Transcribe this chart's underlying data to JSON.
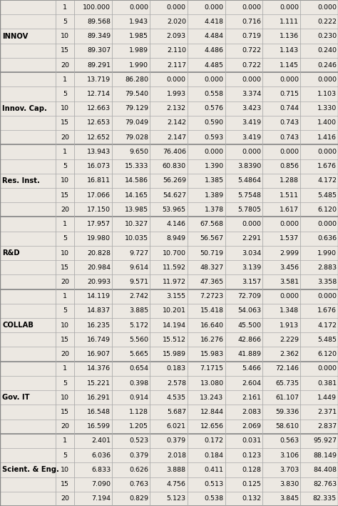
{
  "row_groups": [
    {
      "label": "INNOV",
      "periods": [
        1,
        5,
        10,
        15,
        20
      ],
      "values": [
        [
          "100.000",
          "0.000",
          "0.000",
          "0.000",
          "0.000",
          "0.000",
          "0.000"
        ],
        [
          "89.568",
          "1.943",
          "2.020",
          "4.418",
          "0.716",
          "1.111",
          "0.222"
        ],
        [
          "89.349",
          "1.985",
          "2.093",
          "4.484",
          "0.719",
          "1.136",
          "0.230"
        ],
        [
          "89.307",
          "1.989",
          "2.110",
          "4.486",
          "0.722",
          "1.143",
          "0.240"
        ],
        [
          "89.291",
          "1.990",
          "2.117",
          "4.485",
          "0.722",
          "1.145",
          "0.246"
        ]
      ]
    },
    {
      "label": "Innov. Cap.",
      "periods": [
        1,
        5,
        10,
        15,
        20
      ],
      "values": [
        [
          "13.719",
          "86.280",
          "0.000",
          "0.000",
          "0.000",
          "0.000",
          "0.000"
        ],
        [
          "12.714",
          "79.540",
          "1.993",
          "0.558",
          "3.374",
          "0.715",
          "1.103"
        ],
        [
          "12.663",
          "79.129",
          "2.132",
          "0.576",
          "3.423",
          "0.744",
          "1.330"
        ],
        [
          "12.653",
          "79.049",
          "2.142",
          "0.590",
          "3.419",
          "0.743",
          "1.400"
        ],
        [
          "12.652",
          "79.028",
          "2.147",
          "0.593",
          "3.419",
          "0.743",
          "1.416"
        ]
      ]
    },
    {
      "label": "Res. Inst.",
      "periods": [
        1,
        5,
        10,
        15,
        20
      ],
      "values": [
        [
          "13.943",
          "9.650",
          "76.406",
          "0.000",
          "0.000",
          "0.000",
          "0.000"
        ],
        [
          "16.073",
          "15.333",
          "60.830",
          "1.390",
          "3.8390",
          "0.856",
          "1.676"
        ],
        [
          "16.811",
          "14.586",
          "56.269",
          "1.385",
          "5.4864",
          "1.288",
          "4.172"
        ],
        [
          "17.066",
          "14.165",
          "54.627",
          "1.389",
          "5.7548",
          "1.511",
          "5.485"
        ],
        [
          "17.150",
          "13.985",
          "53.965",
          "1.378",
          "5.7805",
          "1.617",
          "6.120"
        ]
      ]
    },
    {
      "label": "R&D",
      "periods": [
        1,
        5,
        10,
        15,
        20
      ],
      "values": [
        [
          "17.957",
          "10.327",
          "4.146",
          "67.568",
          "0.000",
          "0.000",
          "0.000"
        ],
        [
          "19.980",
          "10.035",
          "8.949",
          "56.567",
          "2.291",
          "1.537",
          "0.636"
        ],
        [
          "20.828",
          "9.727",
          "10.700",
          "50.719",
          "3.034",
          "2.999",
          "1.990"
        ],
        [
          "20.984",
          "9.614",
          "11.592",
          "48.327",
          "3.139",
          "3.456",
          "2.883"
        ],
        [
          "20.993",
          "9.571",
          "11.972",
          "47.365",
          "3.157",
          "3.581",
          "3.358"
        ]
      ]
    },
    {
      "label": "COLLAB",
      "periods": [
        1,
        5,
        10,
        15,
        20
      ],
      "values": [
        [
          "14.119",
          "2.742",
          "3.155",
          "7.2723",
          "72.709",
          "0.000",
          "0.000"
        ],
        [
          "14.837",
          "3.885",
          "10.201",
          "15.418",
          "54.063",
          "1.348",
          "1.676"
        ],
        [
          "16.235",
          "5.172",
          "14.194",
          "16.640",
          "45.500",
          "1.913",
          "4.172"
        ],
        [
          "16.749",
          "5.560",
          "15.512",
          "16.276",
          "42.866",
          "2.229",
          "5.485"
        ],
        [
          "16.907",
          "5.665",
          "15.989",
          "15.983",
          "41.889",
          "2.362",
          "6.120"
        ]
      ]
    },
    {
      "label": "Gov. IT",
      "periods": [
        1,
        5,
        10,
        15,
        20
      ],
      "values": [
        [
          "14.376",
          "0.654",
          "0.183",
          "7.1715",
          "5.466",
          "72.146",
          "0.000"
        ],
        [
          "15.221",
          "0.398",
          "2.578",
          "13.080",
          "2.604",
          "65.735",
          "0.381"
        ],
        [
          "16.291",
          "0.914",
          "4.535",
          "13.243",
          "2.161",
          "61.107",
          "1.449"
        ],
        [
          "16.548",
          "1.128",
          "5.687",
          "12.844",
          "2.083",
          "59.336",
          "2.371"
        ],
        [
          "16.599",
          "1.205",
          "6.021",
          "12.656",
          "2.069",
          "58.610",
          "2.837"
        ]
      ]
    },
    {
      "label": "Scient. & Eng.",
      "periods": [
        1,
        5,
        10,
        15,
        20
      ],
      "values": [
        [
          "2.401",
          "0.523",
          "0.379",
          "0.172",
          "0.031",
          "0.563",
          "95.927"
        ],
        [
          "6.036",
          "0.379",
          "2.018",
          "0.184",
          "0.123",
          "3.106",
          "88.149"
        ],
        [
          "6.833",
          "0.626",
          "3.888",
          "0.411",
          "0.128",
          "3.703",
          "84.408"
        ],
        [
          "7.090",
          "0.763",
          "4.756",
          "0.513",
          "0.125",
          "3.830",
          "82.763"
        ],
        [
          "7.194",
          "0.829",
          "5.123",
          "0.538",
          "0.132",
          "3.845",
          "82.335"
        ]
      ]
    }
  ],
  "bg_color": "#ece8e2",
  "line_color": "#aaaaaa",
  "text_color": "#000000",
  "font_size": 6.8,
  "label_font_size": 7.2
}
